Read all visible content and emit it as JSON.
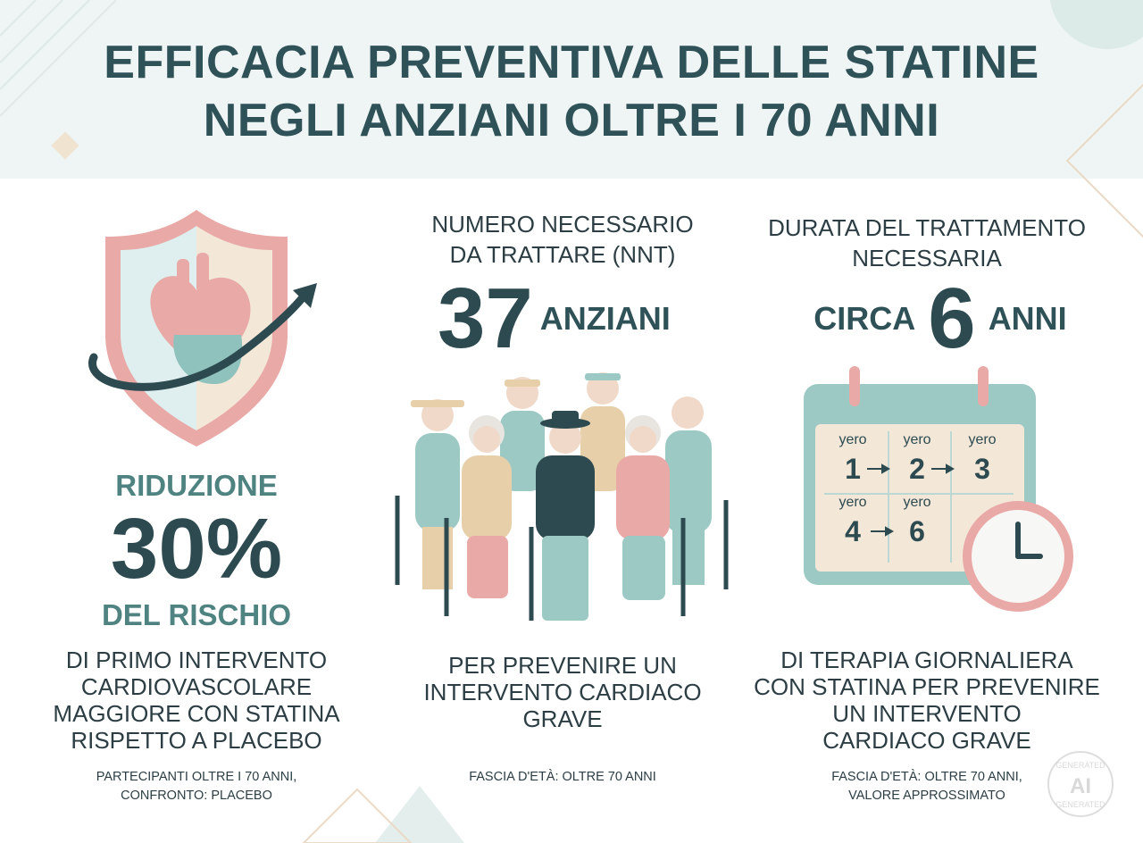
{
  "header": {
    "title_lines": [
      "EFFICACIA PREVENTIVA DELLE STATINE",
      "NEGLI ANZIANI OLTRE I 70 ANNI"
    ]
  },
  "columns": [
    {
      "label": "RIDUZIONE",
      "big_value": "30%",
      "sub_label": "DEL RISCHIO",
      "description_lines": [
        "DI PRIMO INTERVENTO",
        "CARDIOVASCOLARE",
        "MAGGIORE CON STATINA",
        "RISPETTO A PLACEBO"
      ],
      "note_lines": [
        "PARTECIPANTI OLTRE I 70 ANNI,",
        "CONFRONTO: PLACEBO"
      ]
    },
    {
      "heading_lines": [
        "NUMERO NECESSARIO",
        "DA TRATTARE (NNT)"
      ],
      "big_value": "37",
      "unit": "ANZIANI",
      "description_lines": [
        "PER PREVENIRE UN",
        "INTERVENTO CARDIACO",
        "GRAVE"
      ],
      "note_lines": [
        "FASCIA D'ETÀ: OLTRE 70 ANNI"
      ]
    },
    {
      "heading_lines": [
        "DURATA DEL TRATTAMENTO",
        "NECESSARIA"
      ],
      "prefix": "CIRCA",
      "big_value": "6",
      "unit": "ANNI",
      "calendar": [
        {
          "label": "yero",
          "number": "1"
        },
        {
          "label": "yero",
          "number": "2"
        },
        {
          "label": "yero",
          "number": "3"
        },
        {
          "label": "yero",
          "number": "4"
        },
        {
          "label": "yero",
          "number": "6"
        }
      ],
      "description_lines": [
        "DI TERAPIA GIORNALIERA",
        "CON STATINA PER PREVENIRE",
        "UN INTERVENTO",
        "CARDIACO GRAVE"
      ],
      "note_lines": [
        "FASCIA D'ETÀ: OLTRE 70 ANNI,",
        "VALORE APPROSSIMATO"
      ]
    }
  ],
  "watermark": {
    "lines": [
      "GENERATED",
      "AI",
      "GENERATED"
    ]
  }
}
